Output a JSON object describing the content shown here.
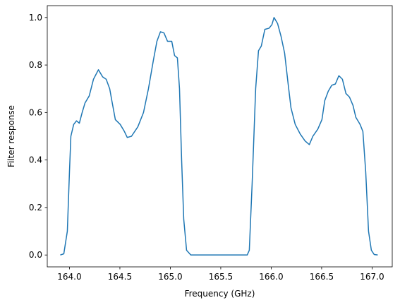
{
  "chart_data": {
    "type": "line",
    "xlabel": "Frequency (GHz)",
    "ylabel": "Filter response",
    "x": [
      163.909,
      163.944,
      163.979,
      164.0,
      164.014,
      164.042,
      164.07,
      164.098,
      164.126,
      164.154,
      164.196,
      164.238,
      164.287,
      164.329,
      164.364,
      164.399,
      164.42,
      164.455,
      164.503,
      164.545,
      164.573,
      164.615,
      164.678,
      164.734,
      164.783,
      164.832,
      164.867,
      164.902,
      164.937,
      164.972,
      165.014,
      165.042,
      165.07,
      165.091,
      165.112,
      165.133,
      165.161,
      165.203,
      165.762,
      165.783,
      165.811,
      165.846,
      165.874,
      165.902,
      165.937,
      165.979,
      166.007,
      166.028,
      166.063,
      166.098,
      166.133,
      166.168,
      166.196,
      166.238,
      166.287,
      166.336,
      166.378,
      166.413,
      166.462,
      166.503,
      166.531,
      166.566,
      166.601,
      166.636,
      166.671,
      166.706,
      166.741,
      166.776,
      166.811,
      166.839,
      166.881,
      166.909,
      166.937,
      166.965,
      166.993,
      167.021,
      167.056
    ],
    "series": [
      {
        "name": "response",
        "color": "#1f77b4",
        "values": [
          0.0,
          0.005,
          0.1,
          0.35,
          0.5,
          0.55,
          0.565,
          0.555,
          0.6,
          0.64,
          0.67,
          0.74,
          0.78,
          0.75,
          0.74,
          0.7,
          0.65,
          0.57,
          0.55,
          0.52,
          0.495,
          0.5,
          0.54,
          0.6,
          0.7,
          0.82,
          0.9,
          0.94,
          0.935,
          0.9,
          0.9,
          0.84,
          0.83,
          0.7,
          0.4,
          0.15,
          0.02,
          0.0,
          0.0,
          0.02,
          0.3,
          0.7,
          0.86,
          0.88,
          0.95,
          0.955,
          0.97,
          1.0,
          0.975,
          0.92,
          0.85,
          0.72,
          0.62,
          0.55,
          0.51,
          0.48,
          0.465,
          0.5,
          0.53,
          0.57,
          0.65,
          0.69,
          0.715,
          0.72,
          0.755,
          0.74,
          0.68,
          0.665,
          0.63,
          0.58,
          0.55,
          0.52,
          0.35,
          0.1,
          0.02,
          0.002,
          0.0
        ]
      }
    ],
    "xlim": [
      163.78,
      167.2
    ],
    "xticks": [
      {
        "value": 164,
        "label": "164.0"
      },
      164.5,
      {
        "value": 165,
        "label": "165.0"
      },
      165.5,
      {
        "value": 166,
        "label": "166.0"
      },
      166.5,
      {
        "value": 167,
        "label": "167.0"
      }
    ],
    "ylim": [
      -0.05,
      1.05
    ],
    "yticks": [
      {
        "value": 0,
        "label": "0.0"
      },
      0.2,
      0.4,
      0.6,
      0.8,
      {
        "value": 1,
        "label": "1.0"
      }
    ],
    "grid": false
  }
}
